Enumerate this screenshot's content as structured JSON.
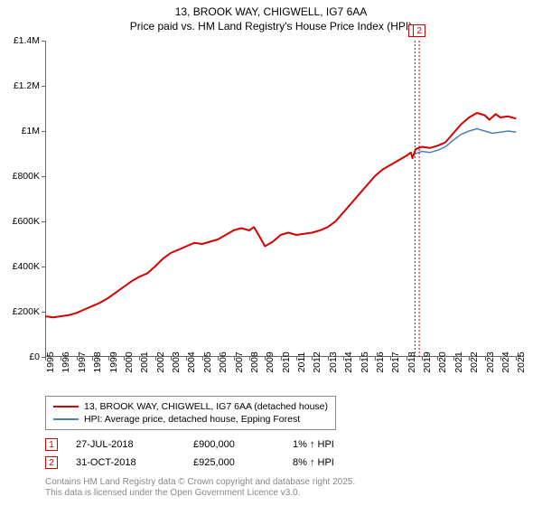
{
  "title_line1": "13, BROOK WAY, CHIGWELL, IG7 6AA",
  "title_line2": "Price paid vs. HM Land Registry's House Price Index (HPI)",
  "chart": {
    "type": "line",
    "background_color": "#ffffff",
    "axis_color": "#666666",
    "xlim": [
      1995,
      2025.5
    ],
    "ylim": [
      0,
      1400000
    ],
    "y_ticks": [
      0,
      200000,
      400000,
      600000,
      800000,
      1000000,
      1200000,
      1400000
    ],
    "y_tick_labels": [
      "£0",
      "£200K",
      "£400K",
      "£600K",
      "£800K",
      "£1M",
      "£1.2M",
      "£1.4M"
    ],
    "x_ticks": [
      1995,
      1996,
      1997,
      1998,
      1999,
      2000,
      2001,
      2002,
      2003,
      2004,
      2005,
      2006,
      2007,
      2008,
      2009,
      2010,
      2011,
      2012,
      2013,
      2014,
      2015,
      2016,
      2017,
      2018,
      2019,
      2020,
      2021,
      2022,
      2023,
      2024,
      2025
    ],
    "series": [
      {
        "name": "red",
        "color": "#d40000",
        "width": 2,
        "points": [
          [
            1995,
            180000
          ],
          [
            1995.5,
            175000
          ],
          [
            1996,
            180000
          ],
          [
            1996.5,
            185000
          ],
          [
            1997,
            195000
          ],
          [
            1997.5,
            210000
          ],
          [
            1998,
            225000
          ],
          [
            1998.5,
            240000
          ],
          [
            1999,
            260000
          ],
          [
            1999.5,
            285000
          ],
          [
            2000,
            310000
          ],
          [
            2000.5,
            335000
          ],
          [
            2001,
            355000
          ],
          [
            2001.5,
            370000
          ],
          [
            2002,
            400000
          ],
          [
            2002.5,
            435000
          ],
          [
            2003,
            460000
          ],
          [
            2003.5,
            475000
          ],
          [
            2004,
            490000
          ],
          [
            2004.5,
            505000
          ],
          [
            2005,
            500000
          ],
          [
            2005.5,
            510000
          ],
          [
            2006,
            520000
          ],
          [
            2006.5,
            540000
          ],
          [
            2007,
            560000
          ],
          [
            2007.5,
            570000
          ],
          [
            2008,
            560000
          ],
          [
            2008.3,
            575000
          ],
          [
            2008.6,
            540000
          ],
          [
            2009,
            490000
          ],
          [
            2009.5,
            510000
          ],
          [
            2010,
            540000
          ],
          [
            2010.5,
            550000
          ],
          [
            2011,
            540000
          ],
          [
            2011.5,
            545000
          ],
          [
            2012,
            550000
          ],
          [
            2012.5,
            560000
          ],
          [
            2013,
            575000
          ],
          [
            2013.5,
            600000
          ],
          [
            2014,
            640000
          ],
          [
            2014.5,
            680000
          ],
          [
            2015,
            720000
          ],
          [
            2015.5,
            760000
          ],
          [
            2016,
            800000
          ],
          [
            2016.5,
            830000
          ],
          [
            2017,
            850000
          ],
          [
            2017.5,
            870000
          ],
          [
            2018,
            890000
          ],
          [
            2018.3,
            905000
          ],
          [
            2018.4,
            880000
          ],
          [
            2018.5,
            900000
          ],
          [
            2018.6,
            920000
          ],
          [
            2018.8,
            925000
          ],
          [
            2019,
            930000
          ],
          [
            2019.5,
            925000
          ],
          [
            2020,
            935000
          ],
          [
            2020.5,
            950000
          ],
          [
            2021,
            990000
          ],
          [
            2021.5,
            1030000
          ],
          [
            2022,
            1060000
          ],
          [
            2022.5,
            1080000
          ],
          [
            2023,
            1070000
          ],
          [
            2023.3,
            1050000
          ],
          [
            2023.7,
            1075000
          ],
          [
            2024,
            1060000
          ],
          [
            2024.5,
            1065000
          ],
          [
            2025,
            1055000
          ]
        ]
      },
      {
        "name": "blue",
        "color": "#4a7fb8",
        "width": 1.5,
        "points": [
          [
            2018.56,
            900000
          ],
          [
            2018.8,
            905000
          ],
          [
            2019,
            910000
          ],
          [
            2019.5,
            905000
          ],
          [
            2020,
            915000
          ],
          [
            2020.5,
            930000
          ],
          [
            2021,
            960000
          ],
          [
            2021.5,
            985000
          ],
          [
            2022,
            1000000
          ],
          [
            2022.5,
            1010000
          ],
          [
            2023,
            1000000
          ],
          [
            2023.5,
            990000
          ],
          [
            2024,
            995000
          ],
          [
            2024.5,
            1000000
          ],
          [
            2025,
            995000
          ]
        ]
      }
    ],
    "markers": [
      {
        "n": "1",
        "x": 2018.56,
        "color": "#d40000"
      },
      {
        "n": "2",
        "x": 2018.83,
        "color": "#d40000"
      }
    ]
  },
  "legend": {
    "items": [
      {
        "color": "#d40000",
        "width": 2.5,
        "label": "13, BROOK WAY, CHIGWELL, IG7 6AA (detached house)"
      },
      {
        "color": "#4a7fb8",
        "width": 1.5,
        "label": "HPI: Average price, detached house, Epping Forest"
      }
    ]
  },
  "sales": [
    {
      "n": "1",
      "color": "#d40000",
      "date": "27-JUL-2018",
      "price": "£900,000",
      "diff": "1% ↑ HPI"
    },
    {
      "n": "2",
      "color": "#d40000",
      "date": "31-OCT-2018",
      "price": "£925,000",
      "diff": "8% ↑ HPI"
    }
  ],
  "attribution_line1": "Contains HM Land Registry data © Crown copyright and database right 2025.",
  "attribution_line2": "This data is licensed under the Open Government Licence v3.0."
}
